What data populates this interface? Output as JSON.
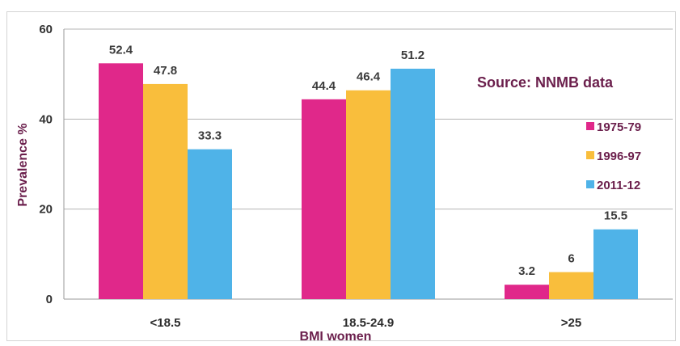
{
  "chart_data": {
    "type": "bar",
    "title": "",
    "xlabel": "BMI women",
    "ylabel": "Prevalence %",
    "ylim": [
      0,
      60
    ],
    "yticks": [
      "0",
      "20",
      "40",
      "60"
    ],
    "categories": [
      "<18.5",
      "18.5-24.9",
      ">25"
    ],
    "series": [
      {
        "name": "1975-79",
        "color": "#e0288a",
        "values": [
          52.4,
          44.4,
          3.2
        ],
        "labels": [
          "52.4",
          "44.4",
          "3.2"
        ]
      },
      {
        "name": "1996-97",
        "color": "#f9be3c",
        "values": [
          47.8,
          46.4,
          6
        ],
        "labels": [
          "47.8",
          "46.4",
          "6"
        ]
      },
      {
        "name": "2011-12",
        "color": "#4fb3e8",
        "values": [
          33.3,
          51.2,
          15.5
        ],
        "labels": [
          "33.3",
          "51.2",
          "15.5"
        ]
      }
    ],
    "annotation": "Source: NNMB data",
    "grid": true,
    "legend_position": "right"
  }
}
